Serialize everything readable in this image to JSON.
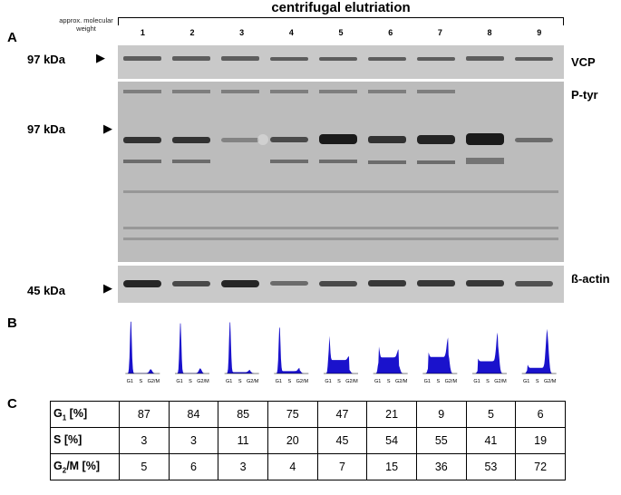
{
  "figure": {
    "title": "centrifugal elutriation",
    "approx_label": "approx. molecular weight",
    "lanes": [
      "1",
      "2",
      "3",
      "4",
      "5",
      "6",
      "7",
      "8",
      "9"
    ],
    "panels": {
      "a": "A",
      "b": "B",
      "c": "C"
    }
  },
  "blots": [
    {
      "name": "VCP",
      "marker": "97 kDa"
    },
    {
      "name": "P-tyr",
      "marker": "97 kDa"
    },
    {
      "name": "ß-actin",
      "marker": "45 kDa"
    }
  ],
  "histograms": {
    "color": "#1a12cc",
    "axis_labels": [
      "G1",
      "S",
      "G2/M"
    ],
    "profiles": [
      {
        "lane": "1",
        "g1": 87,
        "s": 3,
        "g2m": 5
      },
      {
        "lane": "2",
        "g1": 84,
        "s": 3,
        "g2m": 6
      },
      {
        "lane": "3",
        "g1": 85,
        "s": 11,
        "g2m": 3
      },
      {
        "lane": "4",
        "g1": 75,
        "s": 20,
        "g2m": 4
      },
      {
        "lane": "5",
        "g1": 47,
        "s": 45,
        "g2m": 7
      },
      {
        "lane": "6",
        "g1": 21,
        "s": 54,
        "g2m": 15
      },
      {
        "lane": "7",
        "g1": 9,
        "s": 55,
        "g2m": 36
      },
      {
        "lane": "8",
        "g1": 5,
        "s": 41,
        "g2m": 53
      },
      {
        "lane": "9",
        "g1": 6,
        "s": 19,
        "g2m": 72
      }
    ]
  },
  "table": {
    "rows": [
      {
        "label_main": "G",
        "label_sub": "1",
        "label_tail": " [%]",
        "values": [
          "87",
          "84",
          "85",
          "75",
          "47",
          "21",
          "9",
          "5",
          "6"
        ]
      },
      {
        "label_main": "S",
        "label_sub": "",
        "label_tail": " [%]",
        "values": [
          "3",
          "3",
          "11",
          "20",
          "45",
          "54",
          "55",
          "41",
          "19"
        ]
      },
      {
        "label_main": "G",
        "label_sub": "2",
        "label_tail": "/M [%]",
        "values": [
          "5",
          "6",
          "3",
          "4",
          "7",
          "15",
          "36",
          "53",
          "72"
        ]
      }
    ]
  }
}
